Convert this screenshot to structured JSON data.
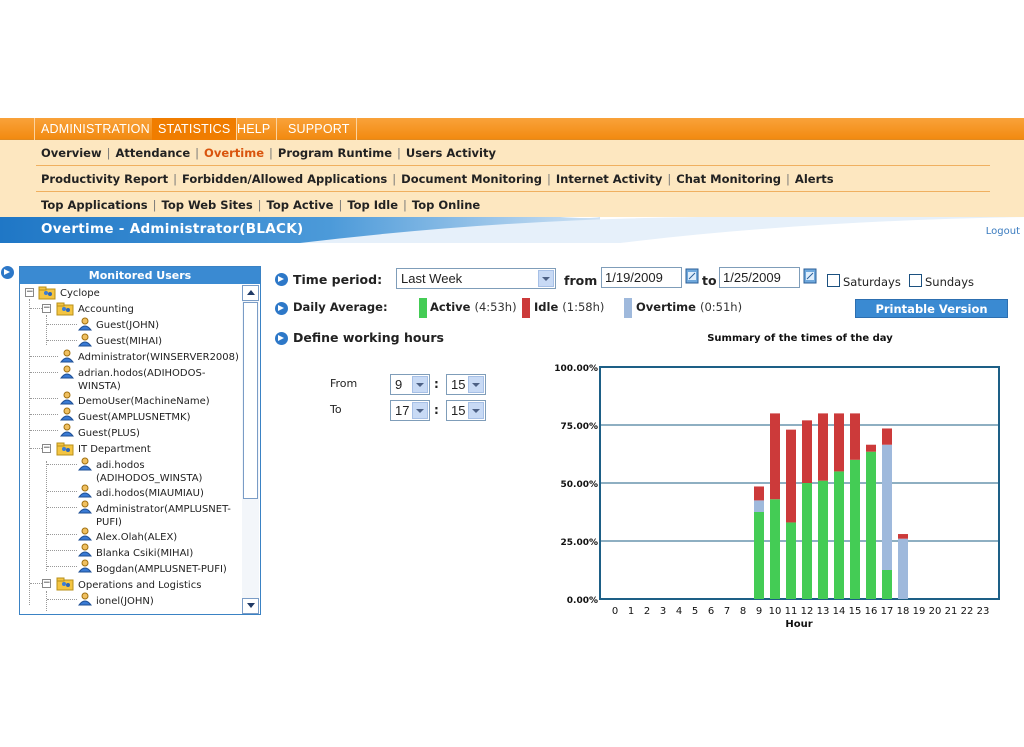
{
  "tabs": [
    {
      "label": "ADMINISTRATION",
      "active": false
    },
    {
      "label": "STATISTICS",
      "active": true
    },
    {
      "label": "HELP",
      "active": false
    },
    {
      "label": "SUPPORT",
      "active": false
    }
  ],
  "subnav": {
    "row1": [
      "Overview",
      "Attendance",
      "Overtime",
      "Program Runtime",
      "Users Activity"
    ],
    "row2": [
      "Productivity Report",
      "Forbidden/Allowed Applications",
      "Document Monitoring",
      "Internet Activity",
      "Chat Monitoring",
      "Alerts"
    ],
    "row3": [
      "Top Applications",
      "Top Web Sites",
      "Top Active",
      "Top Idle",
      "Top Online"
    ],
    "active": "Overtime"
  },
  "page": {
    "title": "Overtime - Administrator(BLACK)",
    "logout": "Logout"
  },
  "users_panel": {
    "header": "Monitored Users",
    "nodes": [
      {
        "label": "Cyclope",
        "type": "root"
      },
      {
        "label": "Accounting",
        "type": "group"
      },
      {
        "label": "Guest(JOHN)",
        "type": "user"
      },
      {
        "label": "Guest(MIHAI)",
        "type": "user"
      },
      {
        "label": "Administrator(WINSERVER2008)",
        "type": "user"
      },
      {
        "label": "adrian.hodos(ADIHODOS-WINSTA)",
        "type": "user"
      },
      {
        "label": "DemoUser(MachineName)",
        "type": "user"
      },
      {
        "label": "Guest(AMPLUSNETMK)",
        "type": "user"
      },
      {
        "label": "Guest(PLUS)",
        "type": "user"
      },
      {
        "label": "IT Department",
        "type": "group"
      },
      {
        "label": "adi.hodos (ADIHODOS_WINSTA)",
        "type": "user"
      },
      {
        "label": "adi.hodos(MIAUMIAU)",
        "type": "user"
      },
      {
        "label": "Administrator(AMPLUSNET-PUFI)",
        "type": "user"
      },
      {
        "label": "Alex.Olah(ALEX)",
        "type": "user"
      },
      {
        "label": "Blanka Csiki(MIHAI)",
        "type": "user"
      },
      {
        "label": "Bogdan(AMPLUSNET-PUFI)",
        "type": "user"
      },
      {
        "label": "Operations and Logistics",
        "type": "group"
      },
      {
        "label": "ionel(JOHN)",
        "type": "user"
      }
    ]
  },
  "filters": {
    "time_period_label": "Time period:",
    "time_period_value": "Last Week",
    "from_label": "from",
    "from_value": "1/19/2009",
    "to_label": "to",
    "to_value": "1/25/2009",
    "saturdays_label": "Saturdays",
    "sundays_label": "Sundays",
    "daily_average_label": "Daily Average:",
    "define_hours_label": "Define working hours",
    "from_hours_label": "From",
    "to_hours_label": "To",
    "from_hour": "9",
    "from_minute": "15",
    "to_hour": "17",
    "to_minute": "15",
    "printable_label": "Printable Version"
  },
  "legend": [
    {
      "name": "Active",
      "duration": "(4:53h)",
      "color": "#44cc55"
    },
    {
      "name": "Idle",
      "duration": "(1:58h)",
      "color": "#cc3a3a"
    },
    {
      "name": "Overtime",
      "duration": "(0:51h)",
      "color": "#9fb9dc"
    }
  ],
  "chart_data": {
    "type": "bar",
    "stacked": true,
    "title": "Summary of the times of the day",
    "xlabel": "Hour",
    "ylabel": "",
    "ylim": [
      0,
      100
    ],
    "yticks": [
      "0.00%",
      "25.00%",
      "50.00%",
      "75.00%",
      "100.00%"
    ],
    "categories": [
      "0",
      "1",
      "2",
      "3",
      "4",
      "5",
      "6",
      "7",
      "8",
      "9",
      "10",
      "11",
      "12",
      "13",
      "14",
      "15",
      "16",
      "17",
      "18",
      "19",
      "20",
      "21",
      "22",
      "23"
    ],
    "series": [
      {
        "name": "Active",
        "color": "#44cc55",
        "values": [
          0,
          0,
          0,
          0,
          0,
          0,
          0,
          0,
          0,
          37.5,
          43,
          33,
          50,
          51,
          55,
          60,
          63.5,
          12.5,
          0,
          0,
          0,
          0,
          0,
          0
        ]
      },
      {
        "name": "Overtime",
        "color": "#9fb9dc",
        "values": [
          0,
          0,
          0,
          0,
          0,
          0,
          0,
          0,
          0,
          5,
          0,
          0,
          0,
          0,
          0,
          0,
          0,
          54,
          26,
          0,
          0,
          0,
          0,
          0
        ]
      },
      {
        "name": "Idle",
        "color": "#cc3a3a",
        "values": [
          0,
          0,
          0,
          0,
          0,
          0,
          0,
          0,
          0,
          6,
          37,
          40,
          27,
          29,
          25,
          20,
          3,
          7,
          2,
          0,
          0,
          0,
          0,
          0
        ]
      }
    ],
    "grid": true,
    "legend": "top"
  }
}
